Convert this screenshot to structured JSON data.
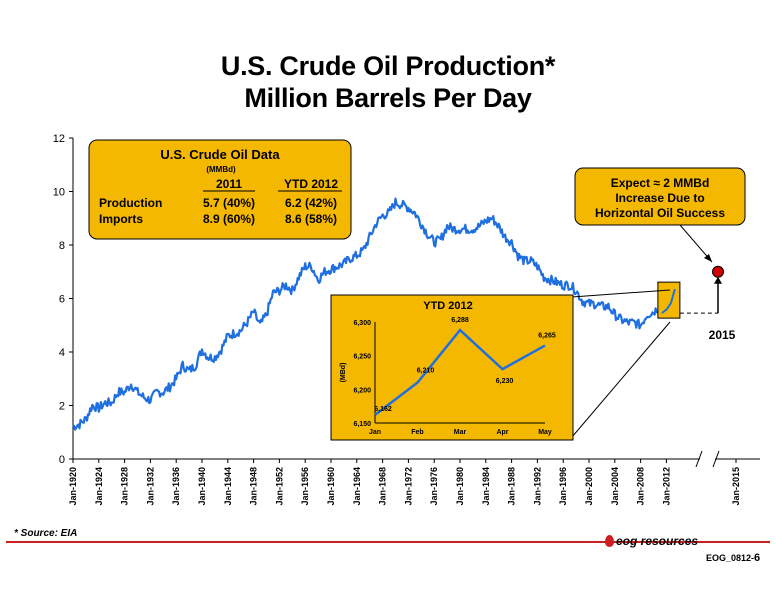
{
  "titles": {
    "line1": "U.S. Crude Oil Production*",
    "line2": "Million Barrels Per Day"
  },
  "chart_data": {
    "type": "line",
    "ylim": [
      0,
      12
    ],
    "y_ticks": [
      "0",
      "2",
      "4",
      "6",
      "8",
      "10",
      "12"
    ],
    "x_ticks": [
      "Jan-1920",
      "Jan-1924",
      "Jan-1928",
      "Jan-1932",
      "Jan-1936",
      "Jan-1940",
      "Jan-1944",
      "Jan-1948",
      "Jan-1952",
      "Jan-1956",
      "Jan-1960",
      "Jan-1964",
      "Jan-1968",
      "Jan-1972",
      "Jan-1976",
      "Jan-1980",
      "Jan-1984",
      "Jan-1988",
      "Jan-1992",
      "Jan-1996",
      "Jan-2000",
      "Jan-2004",
      "Jan-2008",
      "Jan-2012",
      "Jan-2015"
    ],
    "line_color": "#1f6fe0",
    "series": [
      {
        "x": [
          1920,
          1921,
          1922,
          1923,
          1924,
          1925,
          1926,
          1927,
          1928,
          1929,
          1930,
          1931,
          1932,
          1933,
          1934,
          1935,
          1936,
          1937,
          1938,
          1939,
          1940,
          1941,
          1942,
          1943,
          1944,
          1945,
          1946,
          1947,
          1948,
          1949,
          1950,
          1951,
          1952,
          1953,
          1954,
          1955,
          1956,
          1957,
          1958,
          1959,
          1960,
          1961,
          1962,
          1963,
          1964,
          1965,
          1966,
          1967,
          1968,
          1969,
          1970,
          1971,
          1972,
          1973,
          1974,
          1975,
          1976,
          1977,
          1978,
          1979,
          1980,
          1981,
          1982,
          1983,
          1984,
          1985,
          1986,
          1987,
          1988,
          1989,
          1990,
          1991,
          1992,
          1993,
          1994,
          1995,
          1996,
          1997,
          1998,
          1999,
          2000,
          2001,
          2002,
          2003,
          2004,
          2005,
          2006,
          2007,
          2008,
          2009,
          2010,
          2011,
          2012
        ],
        "y": [
          1.2,
          1.3,
          1.5,
          2.0,
          1.9,
          2.1,
          2.1,
          2.5,
          2.5,
          2.8,
          2.5,
          2.3,
          2.2,
          2.5,
          2.5,
          2.7,
          3.0,
          3.5,
          3.3,
          3.5,
          4.1,
          3.8,
          3.8,
          4.1,
          4.6,
          4.7,
          4.8,
          5.1,
          5.5,
          5.0,
          5.4,
          6.2,
          6.3,
          6.5,
          6.3,
          6.8,
          7.2,
          7.2,
          6.7,
          7.0,
          7.1,
          7.2,
          7.3,
          7.5,
          7.6,
          7.8,
          8.3,
          8.8,
          9.1,
          9.2,
          9.6,
          9.5,
          9.4,
          9.2,
          8.8,
          8.4,
          8.1,
          8.2,
          8.7,
          8.6,
          8.6,
          8.6,
          8.6,
          8.7,
          8.9,
          9.0,
          8.7,
          8.3,
          8.1,
          7.6,
          7.4,
          7.4,
          7.2,
          6.8,
          6.7,
          6.6,
          6.5,
          6.5,
          6.3,
          5.9,
          5.8,
          5.8,
          5.7,
          5.7,
          5.4,
          5.2,
          5.1,
          5.1,
          5.0,
          5.4,
          5.5,
          5.7,
          6.2
        ]
      }
    ],
    "info_box": {
      "title": "U.S. Crude Oil Data",
      "unit": "(MMBd)",
      "col1": "2011",
      "col2": "YTD 2012",
      "rows": [
        {
          "label": "Production",
          "v1": "5.7 (40%)",
          "v2": "6.2 (42%)"
        },
        {
          "label": "Imports",
          "v1": "8.9 (60%)",
          "v2": "8.6 (58%)"
        }
      ]
    },
    "callout": {
      "line1": "Expect ≈ 2 MMBd",
      "line2": "Increase Due to",
      "line3": "Horizontal Oil Success"
    },
    "forecast": {
      "year_label": "2015",
      "x": 2015,
      "y": 7.0
    },
    "inset": {
      "type": "line",
      "title": "YTD 2012",
      "ylabel": "(MBd)",
      "ylim": [
        6150,
        6300
      ],
      "y_ticks": [
        "6,150",
        "6,200",
        "6,250",
        "6,300"
      ],
      "categories": [
        "Jan",
        "Feb",
        "Mar",
        "Apr",
        "May"
      ],
      "values": [
        6162,
        6210,
        6288,
        6230,
        6265
      ],
      "labels": [
        "6,162",
        "6,210",
        "6,288",
        "6,230",
        "6,265"
      ]
    },
    "colors": {
      "box_fill": "#f5b800",
      "box_stroke": "#000000",
      "marker": "#cc0000"
    }
  },
  "footer": {
    "source": "* Source: EIA",
    "logo_text": "eog resources",
    "slide_id": "EOG_0812-",
    "page": "6"
  }
}
